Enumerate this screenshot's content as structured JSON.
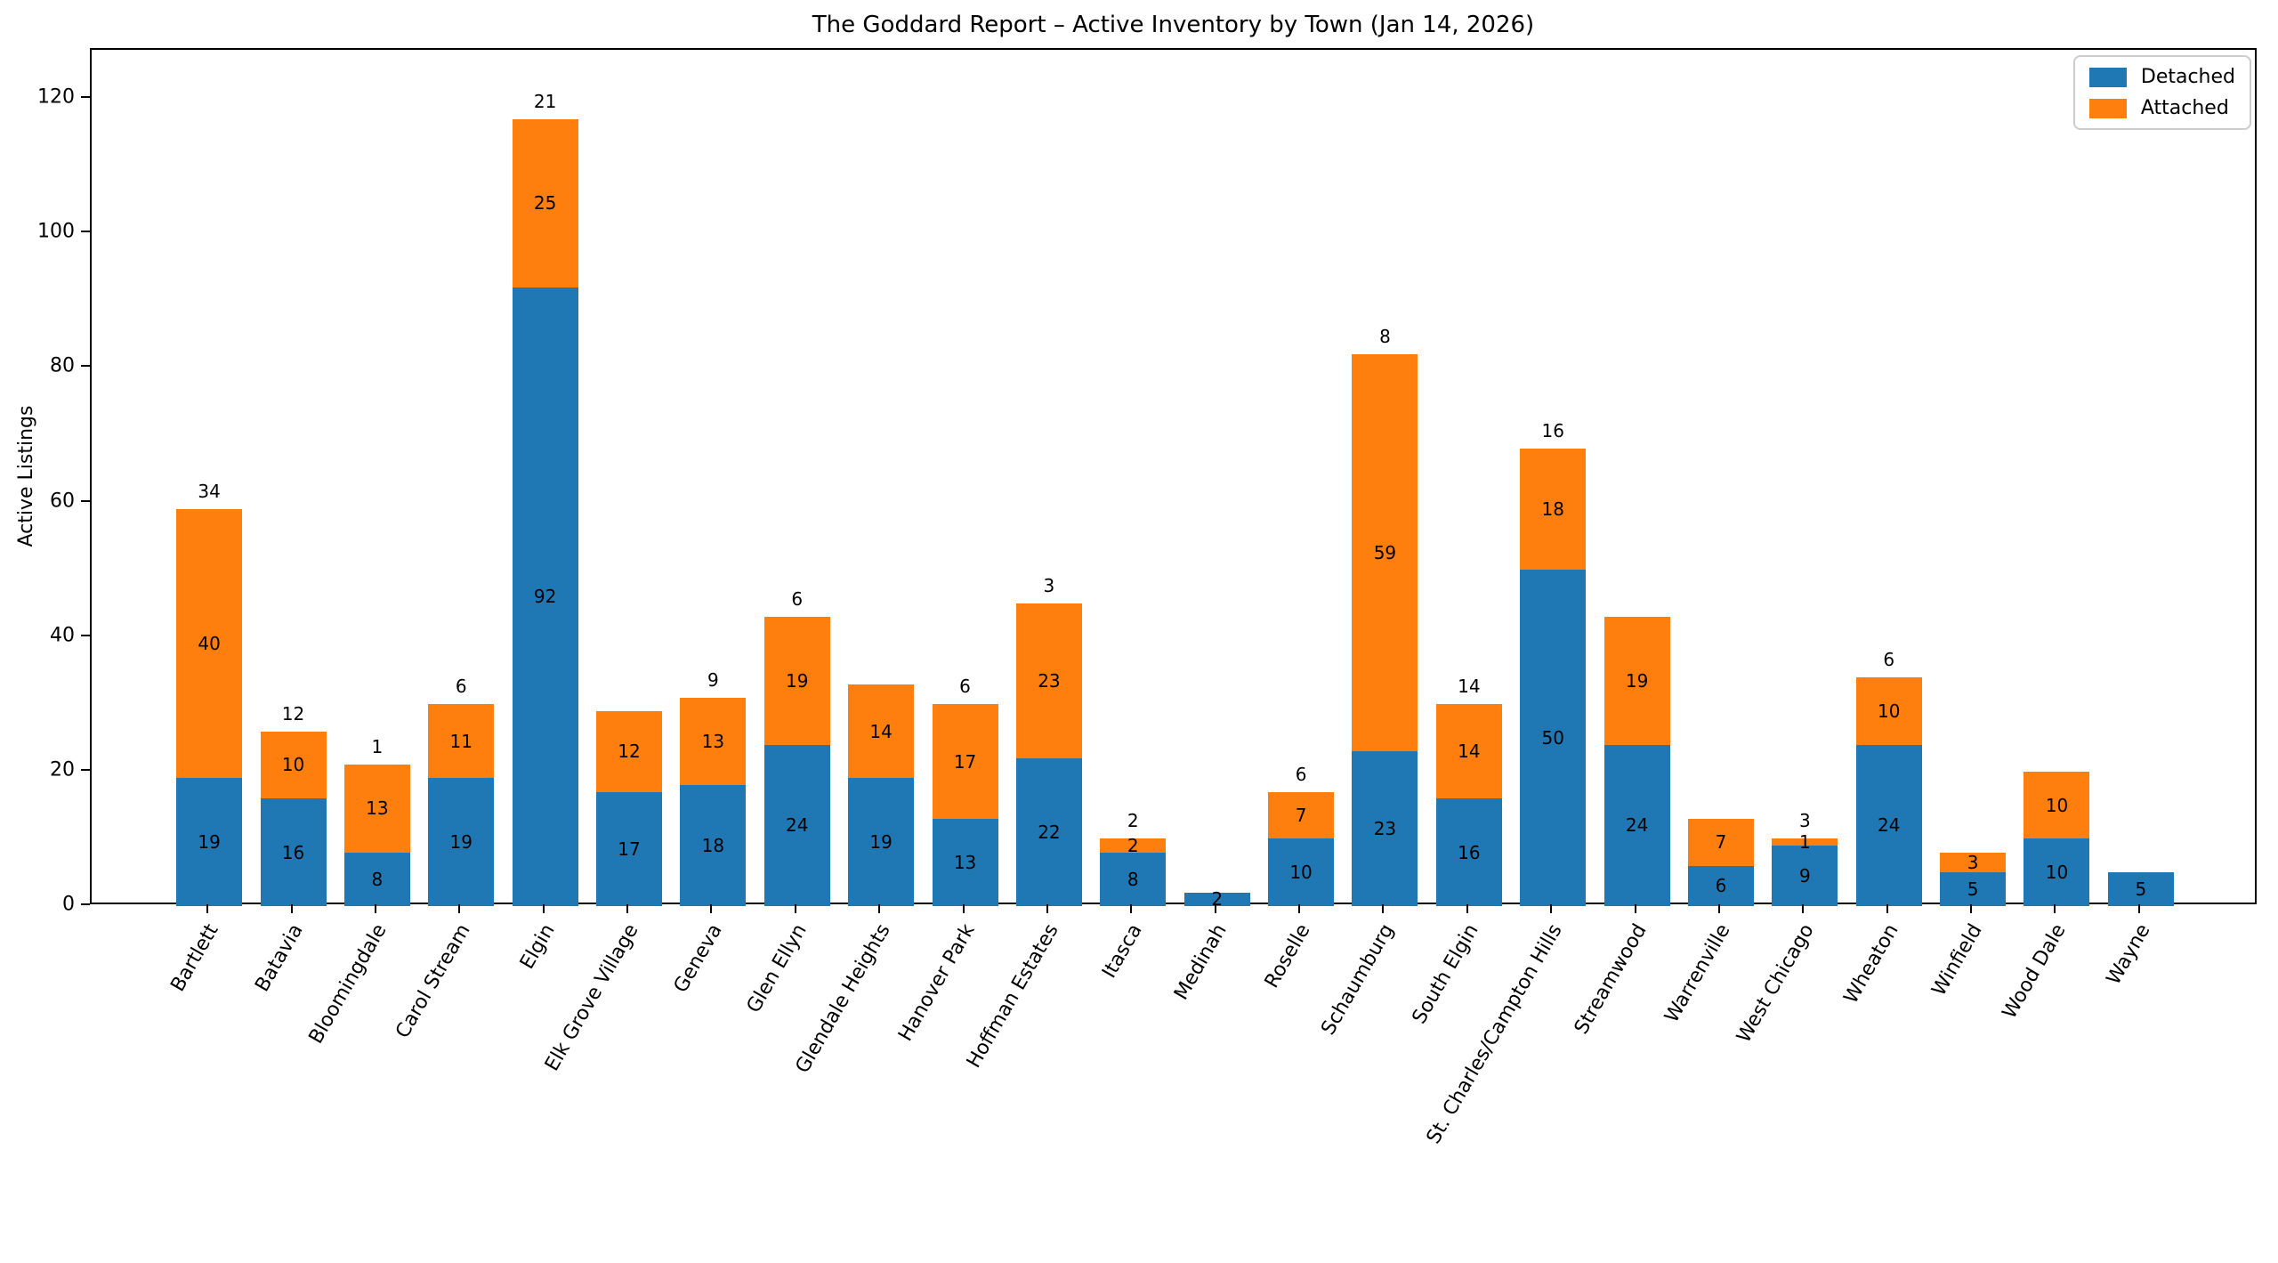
{
  "chart_data": {
    "type": "bar",
    "stacked": true,
    "title": "The Goddard Report – Active Inventory by Town (Jan 14, 2026)",
    "xlabel": "",
    "ylabel": "Active Listings",
    "ylim": [
      0,
      127.3
    ],
    "yticks": [
      0,
      20,
      40,
      60,
      80,
      100,
      120
    ],
    "grid": false,
    "legend_position": "upper right",
    "categories": [
      "Bartlett",
      "Batavia",
      "Bloomingdale",
      "Carol Stream",
      "Elgin",
      "Elk Grove Village",
      "Geneva",
      "Glen Ellyn",
      "Glendale Heights",
      "Hanover Park",
      "Hoffman Estates",
      "Itasca",
      "Medinah",
      "Roselle",
      "Schaumburg",
      "South Elgin",
      "St. Charles/Campton Hills",
      "Streamwood",
      "Warrenville",
      "West Chicago",
      "Wheaton",
      "Winfield",
      "Wood Dale",
      "Wayne"
    ],
    "series": [
      {
        "name": "Detached",
        "color": "#1f77b4",
        "values": [
          19,
          16,
          8,
          19,
          92,
          17,
          18,
          24,
          19,
          13,
          22,
          8,
          2,
          10,
          23,
          16,
          50,
          24,
          6,
          9,
          24,
          5,
          10,
          5
        ]
      },
      {
        "name": "Attached",
        "color": "#ff7f0e",
        "values": [
          40,
          10,
          13,
          11,
          25,
          12,
          13,
          19,
          14,
          17,
          23,
          2,
          0,
          7,
          59,
          14,
          18,
          19,
          7,
          1,
          10,
          3,
          10,
          0
        ]
      }
    ],
    "bar_totals": [
      59,
      26,
      21,
      30,
      117,
      29,
      31,
      43,
      33,
      30,
      45,
      10,
      2,
      17,
      82,
      30,
      68,
      43,
      13,
      10,
      34,
      8,
      20,
      5
    ],
    "bar_top_labels": [
      "34",
      "12",
      "1",
      "6",
      "21",
      "",
      "9",
      "6",
      "",
      "6",
      "3",
      "2",
      "",
      "6",
      "8",
      "14",
      "16",
      "",
      "",
      "3",
      "6",
      "",
      "",
      ""
    ]
  },
  "legend": {
    "detached_label": "Detached",
    "attached_label": "Attached"
  },
  "colors": {
    "detached": "#1f77b4",
    "attached": "#ff7f0e",
    "spine": "#000000",
    "background": "#ffffff"
  }
}
